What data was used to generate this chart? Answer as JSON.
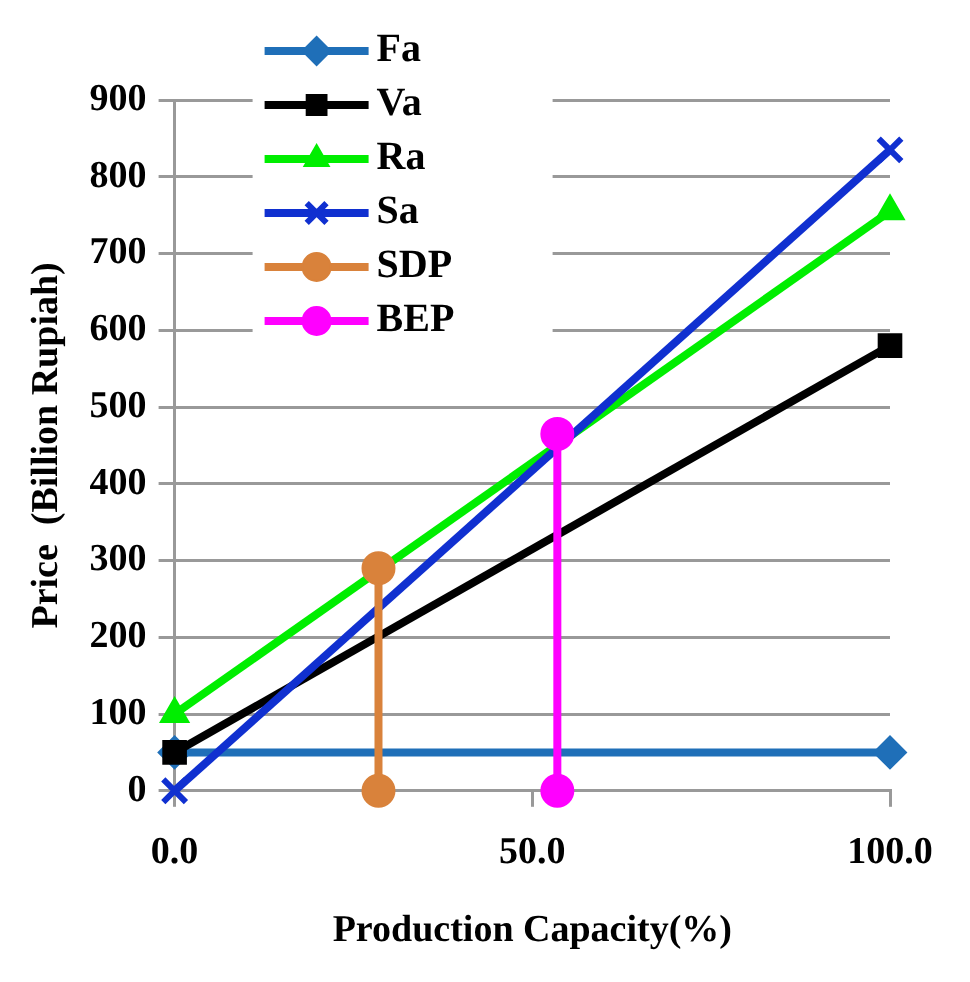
{
  "chart_data": {
    "type": "line",
    "xlabel": "Production Capacity(%)",
    "ylabel": "Price  (Billion Rupiah)",
    "xlim": [
      0,
      100
    ],
    "xticks": [
      {
        "value": 0,
        "label": "0.0"
      },
      {
        "value": 50,
        "label": "50.0"
      },
      {
        "value": 100,
        "label": "100.0"
      }
    ],
    "ylim": [
      0,
      900
    ],
    "yticks": [
      0,
      100,
      200,
      300,
      400,
      500,
      600,
      700,
      800,
      900
    ],
    "grid": "y",
    "legend": "top left",
    "line_style": "solid",
    "series": [
      {
        "name": "Fa",
        "color": "#1f6fb8",
        "marker": "diamond",
        "x": [
          0,
          100
        ],
        "values": [
          50,
          50
        ]
      },
      {
        "name": "Va",
        "color": "#000000",
        "marker": "square",
        "x": [
          0,
          100
        ],
        "values": [
          50,
          580
        ]
      },
      {
        "name": "Ra",
        "color": "#00ee00",
        "marker": "triangle",
        "x": [
          0,
          100
        ],
        "values": [
          100,
          755
        ]
      },
      {
        "name": "Sa",
        "color": "#1030d0",
        "marker": "cross",
        "x": [
          0,
          100
        ],
        "values": [
          0,
          835
        ]
      },
      {
        "name": "SDP",
        "color": "#d9823b",
        "marker": "circle",
        "x": [
          28.5,
          28.5
        ],
        "values": [
          290,
          0
        ]
      },
      {
        "name": "BEP",
        "color": "#ff00ff",
        "marker": "circle",
        "x": [
          53.5,
          53.5
        ],
        "values": [
          465,
          0
        ]
      }
    ]
  }
}
